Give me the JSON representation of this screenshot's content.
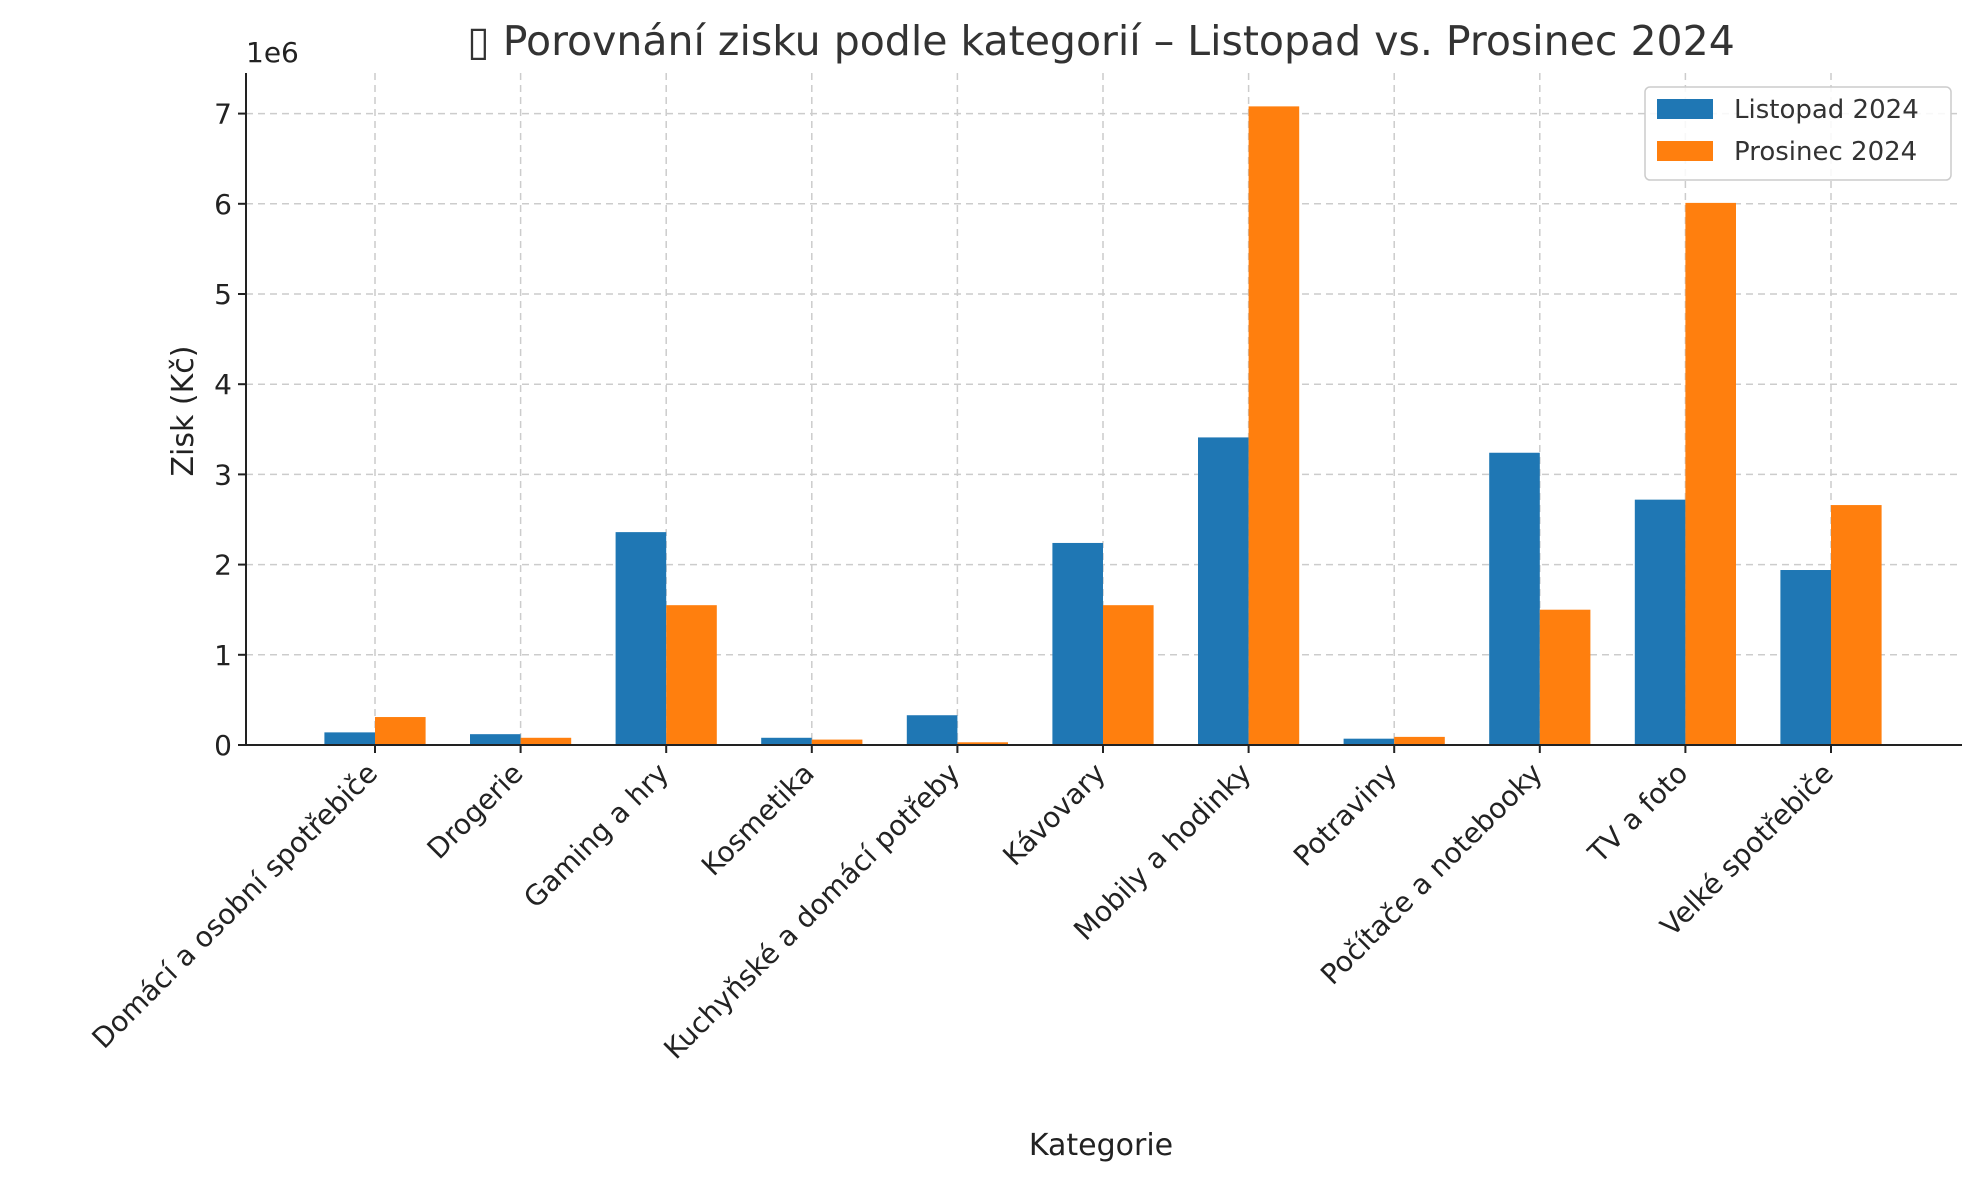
{
  "chart_data": {
    "type": "bar",
    "title": "▯ Porovnání zisku podle kategorií – Listopad vs. Prosinec 2024",
    "xlabel": "Kategorie",
    "ylabel": "Zisk (Kč)",
    "y_scale_note": "1e6",
    "ylim": [
      0,
      7.45
    ],
    "yticks": [
      0,
      1,
      2,
      3,
      4,
      5,
      6,
      7
    ],
    "grid": true,
    "legend_position": "top-right",
    "categories": [
      "Domácí a osobní spotřebiče",
      "Drogerie",
      "Gaming a hry",
      "Kosmetika",
      "Kuchyňské a domácí potřeby",
      "Kávovary",
      "Mobily a hodinky",
      "Potraviny",
      "Počítače a notebooky",
      "TV a foto",
      "Velké spotřebiče"
    ],
    "series": [
      {
        "name": "Listopad 2024",
        "color": "#1f77b4",
        "values": [
          0.14,
          0.12,
          2.36,
          0.08,
          0.33,
          2.24,
          3.41,
          0.07,
          3.24,
          2.72,
          1.94
        ]
      },
      {
        "name": "Prosinec 2024",
        "color": "#ff7f0e",
        "values": [
          0.31,
          0.08,
          1.55,
          0.06,
          0.03,
          1.55,
          7.08,
          0.09,
          1.5,
          6.01,
          2.66
        ]
      }
    ]
  }
}
